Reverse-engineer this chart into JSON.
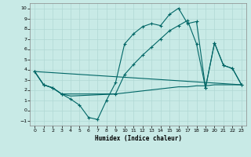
{
  "xlabel": "Humidex (Indice chaleur)",
  "xlim": [
    -0.5,
    23.5
  ],
  "ylim": [
    -1.5,
    10.5
  ],
  "xticks": [
    0,
    1,
    2,
    3,
    4,
    5,
    6,
    7,
    8,
    9,
    10,
    11,
    12,
    13,
    14,
    15,
    16,
    17,
    18,
    19,
    20,
    21,
    22,
    23
  ],
  "yticks": [
    -1,
    0,
    1,
    2,
    3,
    4,
    5,
    6,
    7,
    8,
    9,
    10
  ],
  "bg_color": "#c8eae6",
  "grid_color": "#b0d8d4",
  "line_color": "#006666",
  "line1_x": [
    0,
    1,
    2,
    3,
    4,
    5,
    6,
    7,
    8,
    9,
    10,
    11,
    12,
    13,
    14,
    15,
    16,
    17,
    18,
    19,
    20,
    21,
    22,
    23
  ],
  "line1_y": [
    3.8,
    2.5,
    2.2,
    1.6,
    1.1,
    0.5,
    -0.7,
    -0.9,
    1.0,
    2.7,
    6.5,
    7.5,
    8.2,
    8.5,
    8.3,
    9.4,
    10.0,
    8.5,
    8.7,
    2.2,
    6.6,
    4.4,
    4.1,
    2.5
  ],
  "line2_x": [
    0,
    1,
    2,
    3,
    4,
    9,
    10,
    11,
    12,
    13,
    14,
    15,
    16,
    17,
    18,
    19,
    20,
    21,
    22,
    23
  ],
  "line2_y": [
    3.8,
    2.5,
    2.2,
    1.6,
    1.4,
    1.6,
    1.7,
    1.8,
    1.9,
    2.0,
    2.1,
    2.2,
    2.3,
    2.3,
    2.4,
    2.4,
    2.5,
    2.5,
    2.5,
    2.5
  ],
  "line3_x": [
    0,
    23
  ],
  "line3_y": [
    3.8,
    2.5
  ],
  "line4_x": [
    0,
    1,
    2,
    3,
    9,
    10,
    11,
    12,
    13,
    14,
    15,
    16,
    17,
    18,
    19,
    20,
    21,
    22,
    23
  ],
  "line4_y": [
    3.8,
    2.5,
    2.2,
    1.6,
    1.6,
    3.5,
    4.5,
    5.4,
    6.2,
    7.0,
    7.8,
    8.3,
    8.8,
    6.5,
    2.2,
    6.6,
    4.4,
    4.1,
    2.5
  ]
}
